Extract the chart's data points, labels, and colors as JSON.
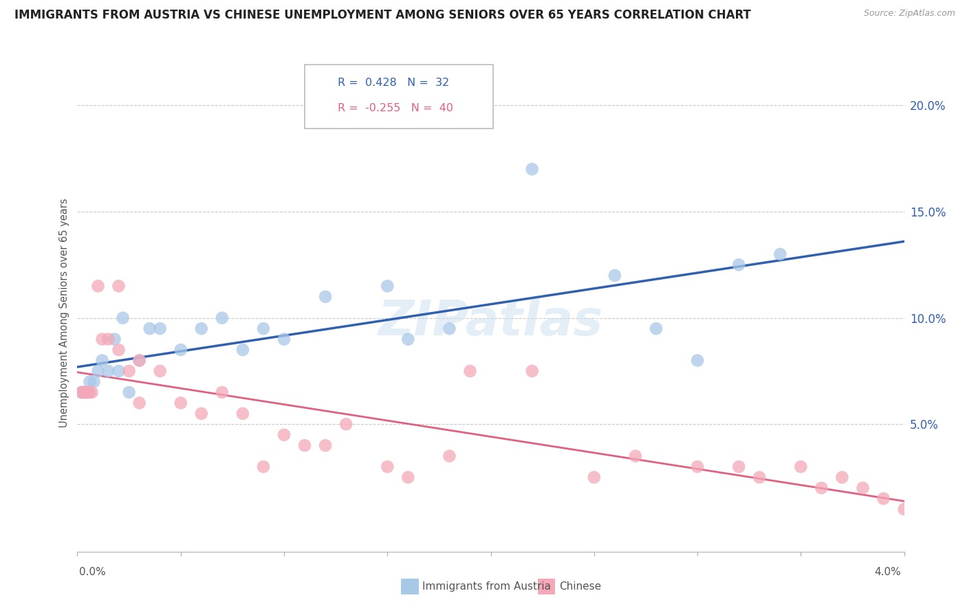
{
  "title": "IMMIGRANTS FROM AUSTRIA VS CHINESE UNEMPLOYMENT AMONG SENIORS OVER 65 YEARS CORRELATION CHART",
  "source": "Source: ZipAtlas.com",
  "ylabel": "Unemployment Among Seniors over 65 years",
  "y_ticks": [
    0.05,
    0.1,
    0.15,
    0.2
  ],
  "y_tick_labels": [
    "5.0%",
    "10.0%",
    "15.0%",
    "20.0%"
  ],
  "x_range": [
    0.0,
    0.04
  ],
  "y_range": [
    -0.01,
    0.215
  ],
  "legend1_r": "0.428",
  "legend1_n": "32",
  "legend2_r": "-0.255",
  "legend2_n": "40",
  "watermark": "ZIPatlas",
  "blue_scatter_color": "#a8c8e8",
  "pink_scatter_color": "#f4a8b8",
  "blue_line_color": "#3060b0",
  "pink_line_color": "#e06080",
  "austria_x": [
    0.0002,
    0.0003,
    0.0004,
    0.0005,
    0.0006,
    0.0008,
    0.001,
    0.0012,
    0.0015,
    0.0018,
    0.002,
    0.0022,
    0.0025,
    0.003,
    0.0035,
    0.004,
    0.005,
    0.006,
    0.007,
    0.008,
    0.009,
    0.01,
    0.012,
    0.015,
    0.016,
    0.018,
    0.022,
    0.026,
    0.028,
    0.03,
    0.032,
    0.034
  ],
  "austria_y": [
    0.065,
    0.065,
    0.065,
    0.065,
    0.07,
    0.07,
    0.075,
    0.08,
    0.075,
    0.09,
    0.075,
    0.1,
    0.065,
    0.08,
    0.095,
    0.095,
    0.085,
    0.095,
    0.1,
    0.085,
    0.095,
    0.09,
    0.11,
    0.115,
    0.09,
    0.095,
    0.17,
    0.12,
    0.095,
    0.08,
    0.125,
    0.13
  ],
  "chinese_x": [
    0.0002,
    0.0003,
    0.0004,
    0.0005,
    0.0006,
    0.0007,
    0.001,
    0.0012,
    0.0015,
    0.002,
    0.002,
    0.0025,
    0.003,
    0.003,
    0.004,
    0.005,
    0.006,
    0.007,
    0.008,
    0.009,
    0.01,
    0.011,
    0.012,
    0.013,
    0.015,
    0.016,
    0.018,
    0.019,
    0.022,
    0.025,
    0.027,
    0.03,
    0.032,
    0.033,
    0.035,
    0.036,
    0.037,
    0.038,
    0.039,
    0.04
  ],
  "chinese_y": [
    0.065,
    0.065,
    0.065,
    0.065,
    0.065,
    0.065,
    0.115,
    0.09,
    0.09,
    0.085,
    0.115,
    0.075,
    0.06,
    0.08,
    0.075,
    0.06,
    0.055,
    0.065,
    0.055,
    0.03,
    0.045,
    0.04,
    0.04,
    0.05,
    0.03,
    0.025,
    0.035,
    0.075,
    0.075,
    0.025,
    0.035,
    0.03,
    0.03,
    0.025,
    0.03,
    0.02,
    0.025,
    0.02,
    0.015,
    0.01
  ]
}
